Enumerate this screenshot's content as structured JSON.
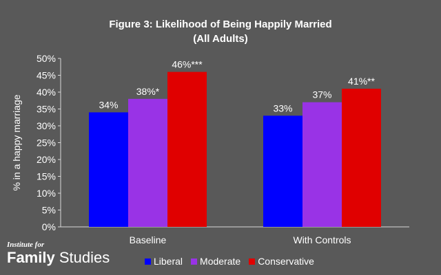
{
  "chart_data": {
    "type": "bar",
    "title": "Figure 3: Likelihood of Being Happily Married",
    "subtitle": "(All Adults)",
    "ylabel": "% in a happy marriage",
    "xlabel": "",
    "ylim": [
      0,
      50
    ],
    "yticks": [
      "0%",
      "5%",
      "10%",
      "15%",
      "20%",
      "25%",
      "30%",
      "35%",
      "40%",
      "45%",
      "50%"
    ],
    "categories": [
      "Baseline",
      "With Controls"
    ],
    "series": [
      {
        "name": "Liberal",
        "color": "#0000ff",
        "values": [
          34,
          33
        ],
        "labels": [
          "34%",
          "33%"
        ]
      },
      {
        "name": "Moderate",
        "color": "#9933e6",
        "values": [
          38,
          37
        ],
        "labels": [
          "38%*",
          "37%"
        ]
      },
      {
        "name": "Conservative",
        "color": "#e00000",
        "values": [
          46,
          41
        ],
        "labels": [
          "46%***",
          "41%**"
        ]
      }
    ],
    "grid": false,
    "legend_position": "bottom"
  },
  "branding": {
    "line1": "Institute for",
    "word_bold": "Family",
    "word_regular": " Studies"
  }
}
